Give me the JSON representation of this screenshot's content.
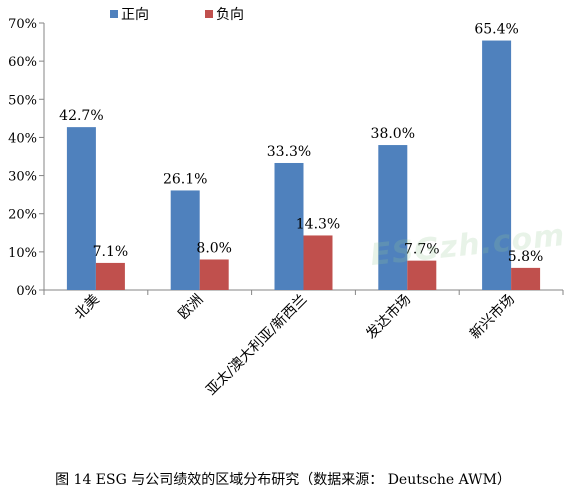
{
  "chart_data": {
    "type": "bar",
    "categories": [
      "北美",
      "欧洲",
      "亚太/澳大利亚/新西兰",
      "发达市场",
      "新兴市场"
    ],
    "series": [
      {
        "name": "正向",
        "color": "#4F81BD",
        "values": [
          42.7,
          26.1,
          33.3,
          38.0,
          65.4
        ],
        "labels": [
          "42.7%",
          "26.1%",
          "33.3%",
          "38.0%",
          "65.4%"
        ]
      },
      {
        "name": "负向",
        "color": "#C0504D",
        "values": [
          7.1,
          8.0,
          14.3,
          7.7,
          5.8
        ],
        "labels": [
          "7.1%",
          "8.0%",
          "14.3%",
          "7.7%",
          "5.8%"
        ]
      }
    ],
    "ylim": [
      0,
      70
    ],
    "yticks": [
      0,
      10,
      20,
      30,
      40,
      50,
      60,
      70
    ],
    "ytick_labels": [
      "0%",
      "10%",
      "20%",
      "30%",
      "40%",
      "50%",
      "60%",
      "70%"
    ],
    "grid": false,
    "legend_position": "top-left"
  },
  "watermark": "ESGzh.com",
  "caption": "图 14 ESG 与公司绩效的区域分布研究（数据来源： Deutsche AWM）"
}
